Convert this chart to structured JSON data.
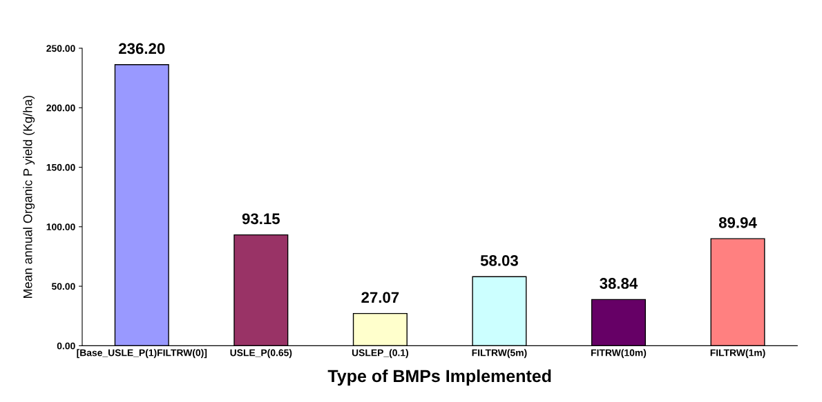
{
  "chart_data": {
    "type": "bar",
    "xlabel": "Type of BMPs Implemented",
    "ylabel": "Mean annual Organic P yield (Kg/ha)",
    "categories": [
      "[Base_USLE_P(1)FILTRW(0)]",
      "USLE_P(0.65)",
      "USLEP_(0.1)",
      "FILTRW(5m)",
      "FITRW(10m)",
      "FILTRW(1m)"
    ],
    "values": [
      236.2,
      93.15,
      27.07,
      58.03,
      38.84,
      89.94
    ],
    "value_labels": [
      "236.20",
      "93.15",
      "27.07",
      "58.03",
      "38.84",
      "89.94"
    ],
    "colors": [
      "#9999ff",
      "#993366",
      "#ffffcc",
      "#ccffff",
      "#660066",
      "#ff8080"
    ],
    "ylim": [
      0,
      250
    ],
    "yticks": [
      {
        "value": 0,
        "label": "0.00"
      },
      {
        "value": 50,
        "label": "50.00"
      },
      {
        "value": 100,
        "label": "100.00"
      },
      {
        "value": 150,
        "label": "150.00"
      },
      {
        "value": 200,
        "label": "200.00"
      },
      {
        "value": 250,
        "label": "250.00"
      }
    ],
    "grid": false,
    "legend": false
  }
}
